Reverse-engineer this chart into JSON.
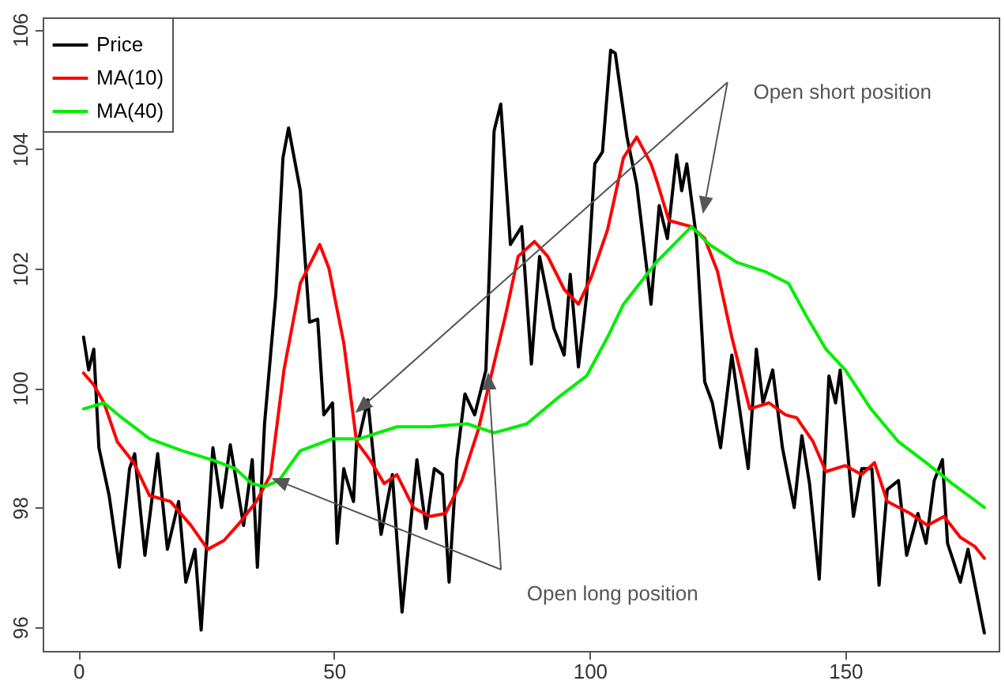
{
  "chart_data": {
    "type": "line",
    "xlim": [
      -7,
      180
    ],
    "xticks": [
      0,
      50,
      100,
      150
    ],
    "ylim": [
      95.6,
      106.2
    ],
    "yticks": [
      96,
      98,
      100,
      102,
      104,
      106
    ],
    "grid": false,
    "legend": "top left",
    "line_style": "solid",
    "annotations": [
      "Open short position",
      "Open long position"
    ],
    "series": [
      {
        "name": "Price",
        "color": "#000000",
        "x": [
          1,
          2,
          3,
          4,
          6,
          8,
          10,
          11,
          13,
          15.5,
          17.4,
          19.6,
          21,
          22.8,
          24,
          26.3,
          28,
          29.7,
          32.3,
          34,
          35,
          36.4,
          38.6,
          40,
          41.1,
          43.4,
          45.2,
          46.8,
          48,
          49.7,
          50.6,
          51.9,
          52.2,
          53.8,
          54.4,
          55,
          56.6,
          59.2,
          61.4,
          63.3,
          66.2,
          68,
          69.6,
          71.2,
          72.5,
          74,
          75.6,
          77.5,
          79.7,
          81.3,
          82.6,
          84.5,
          86.7,
          88.6,
          90.2,
          93,
          95,
          96.2,
          97.8,
          99.4,
          101,
          102.5,
          104.1,
          105,
          107.3,
          109.2,
          112,
          113.6,
          115.2,
          117,
          118,
          119,
          120.9,
          122.5,
          124,
          125.6,
          127.8,
          131,
          132.6,
          133.9,
          135.8,
          137.7,
          140,
          141.5,
          143,
          144.9,
          146.8,
          148.1,
          149,
          151.6,
          153.2,
          155.2,
          156.6,
          158.2,
          160.4,
          162,
          164.2,
          165.8,
          167.4,
          169,
          170,
          172.5,
          174,
          177.2
        ],
        "values": [
          100.85,
          100.3,
          100.65,
          99.0,
          98.2,
          97.0,
          98.65,
          98.9,
          97.2,
          98.9,
          97.3,
          98.1,
          96.75,
          97.3,
          95.95,
          99.0,
          98.0,
          99.05,
          97.7,
          98.8,
          97.0,
          99.4,
          101.55,
          103.85,
          104.35,
          103.3,
          101.1,
          101.15,
          99.55,
          99.75,
          97.4,
          98.65,
          98.55,
          98.1,
          99.1,
          99.2,
          99.8,
          97.55,
          98.55,
          96.25,
          98.8,
          97.65,
          98.65,
          98.55,
          96.75,
          98.8,
          99.9,
          99.55,
          100.3,
          104.3,
          104.75,
          102.4,
          102.7,
          100.4,
          102.2,
          101.0,
          100.55,
          101.9,
          100.35,
          101.55,
          103.75,
          103.95,
          105.65,
          105.6,
          104.2,
          103.4,
          101.4,
          103.05,
          102.5,
          103.9,
          103.3,
          103.75,
          102.5,
          100.1,
          99.75,
          99.0,
          100.55,
          98.65,
          100.65,
          99.75,
          100.3,
          99.0,
          98.0,
          99.2,
          98.4,
          96.8,
          100.2,
          99.75,
          100.3,
          97.85,
          98.65,
          98.65,
          96.7,
          98.3,
          98.45,
          97.2,
          97.9,
          97.4,
          98.45,
          98.8,
          97.4,
          96.75,
          97.3,
          95.9
        ]
      },
      {
        "name": "MA(10)",
        "color": "#ff0000",
        "x": [
          1,
          3,
          5,
          7.6,
          10.8,
          13.9,
          18,
          22,
          25.3,
          28.5,
          31.6,
          34.8,
          37.6,
          40.2,
          43.4,
          47.2,
          49,
          51.9,
          54.4,
          57,
          59.8,
          62.3,
          65.5,
          68.7,
          71.8,
          75,
          78.2,
          83.5,
          86,
          89.2,
          91.8,
          95,
          97.8,
          100.3,
          103.5,
          106.6,
          109.2,
          112,
          113,
          115.5,
          119.9,
          122.5,
          125,
          127.8,
          131.3,
          135.1,
          138.3,
          140.5,
          143.7,
          146.2,
          150,
          153.2,
          155.7,
          158.2,
          162.7,
          166.1,
          169.3,
          172.5,
          175.3,
          177.2
        ],
        "values": [
          100.25,
          100.05,
          99.75,
          99.1,
          98.75,
          98.2,
          98.1,
          97.7,
          97.3,
          97.45,
          97.75,
          98.1,
          98.55,
          100.3,
          101.75,
          102.4,
          102.0,
          100.75,
          99.1,
          98.8,
          98.4,
          98.55,
          98.0,
          97.85,
          97.9,
          98.45,
          99.3,
          101.2,
          102.2,
          102.45,
          102.2,
          101.65,
          101.4,
          101.85,
          102.65,
          103.85,
          104.2,
          103.75,
          103.5,
          102.8,
          102.7,
          102.5,
          101.95,
          100.85,
          99.65,
          99.75,
          99.55,
          99.5,
          99.1,
          98.6,
          98.7,
          98.55,
          98.75,
          98.1,
          97.9,
          97.7,
          97.85,
          97.5,
          97.35,
          97.15
        ]
      },
      {
        "name": "MA(40)",
        "color": "#00ee00",
        "x": [
          1,
          5,
          8.5,
          13.9,
          20.3,
          26,
          30.7,
          33.9,
          36.4,
          39.2,
          43.4,
          49.7,
          55,
          62.3,
          68.7,
          76,
          81.3,
          87.7,
          94,
          99.4,
          103.5,
          106.6,
          113,
          119.9,
          123.4,
          128.8,
          134.2,
          138.9,
          142.4,
          146.2,
          150,
          155,
          160.4,
          165.8,
          170.9,
          177.2
        ],
        "values": [
          99.65,
          99.75,
          99.5,
          99.15,
          98.95,
          98.8,
          98.65,
          98.4,
          98.35,
          98.45,
          98.95,
          99.15,
          99.15,
          99.35,
          99.35,
          99.4,
          99.25,
          99.4,
          99.85,
          100.2,
          100.85,
          101.4,
          102.1,
          102.7,
          102.4,
          102.1,
          101.95,
          101.75,
          101.2,
          100.65,
          100.3,
          99.65,
          99.1,
          98.75,
          98.4,
          98.0
        ]
      }
    ]
  }
}
